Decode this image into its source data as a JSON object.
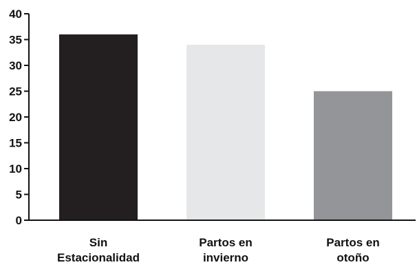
{
  "chart_data": {
    "type": "bar",
    "categories": [
      [
        "Sin",
        "Estacionalidad"
      ],
      [
        "Partos en",
        "invierno"
      ],
      [
        "Partos en",
        "otoño"
      ]
    ],
    "values": [
      36,
      34,
      25
    ],
    "colors": [
      "#231f20",
      "#e6e7e8",
      "#939598"
    ],
    "yticks": [
      0,
      5,
      10,
      15,
      20,
      25,
      30,
      35,
      40
    ],
    "ylim": [
      0,
      40
    ],
    "grid": false,
    "title": "",
    "xlabel": "",
    "ylabel": ""
  }
}
